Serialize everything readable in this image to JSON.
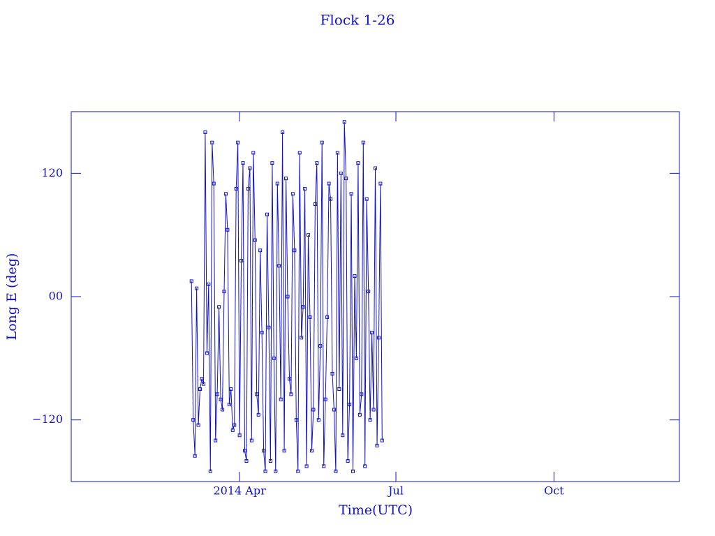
{
  "chart_data": {
    "type": "line",
    "title": "Flock 1-26",
    "x_label": "Time(UTC)",
    "y_label": "Long E (deg)",
    "color": "#1212c8",
    "markers": true,
    "xlim": [
      -8,
      346
    ],
    "xticks": [
      {
        "value": 90,
        "label": "2014 Apr"
      },
      {
        "value": 181,
        "label": "Jul"
      },
      {
        "value": 273,
        "label": "Oct"
      }
    ],
    "ylim": [
      -180,
      180
    ],
    "yticks": [
      {
        "value": -120,
        "label": "−120"
      },
      {
        "value": 0,
        "label": "00"
      },
      120
    ],
    "x": [
      62,
      63,
      64,
      65,
      66,
      67,
      68,
      69,
      70,
      71,
      72,
      73,
      74,
      75,
      76,
      77,
      78,
      79,
      80,
      81,
      82,
      83,
      84,
      85,
      86,
      87,
      88,
      89,
      90,
      91,
      92,
      93,
      94,
      95,
      96,
      97,
      98,
      99,
      100,
      101,
      102,
      103,
      104,
      105,
      106,
      107,
      108,
      109,
      110,
      111,
      112,
      113,
      114,
      115,
      116,
      117,
      118,
      119,
      120,
      121,
      122,
      123,
      124,
      125,
      126,
      127,
      128,
      129,
      130,
      131,
      132,
      133,
      134,
      135,
      136,
      137,
      138,
      139,
      140,
      141,
      142,
      143,
      144,
      145,
      146,
      147,
      148,
      149,
      150,
      151,
      152,
      153,
      154,
      155,
      156,
      157,
      158,
      159,
      160,
      161,
      162,
      163,
      164,
      165,
      166,
      167,
      168,
      169,
      170,
      171,
      172,
      173
    ],
    "values": [
      15,
      -120,
      -155,
      8,
      -125,
      -90,
      -80,
      -85,
      160,
      -55,
      12,
      -170,
      150,
      110,
      -140,
      -95,
      -10,
      -100,
      -110,
      5,
      100,
      65,
      -105,
      -90,
      -130,
      -125,
      105,
      150,
      -135,
      35,
      130,
      -150,
      -160,
      105,
      125,
      -140,
      140,
      55,
      -95,
      -115,
      45,
      -35,
      -150,
      -170,
      80,
      -30,
      -160,
      130,
      -60,
      -170,
      110,
      30,
      -100,
      160,
      -150,
      115,
      0,
      -80,
      -95,
      100,
      45,
      -120,
      -170,
      140,
      -40,
      -10,
      105,
      -165,
      60,
      -20,
      -150,
      -110,
      90,
      130,
      -120,
      -48,
      150,
      -165,
      -100,
      -20,
      110,
      95,
      -75,
      -110,
      -170,
      140,
      -90,
      120,
      -135,
      170,
      115,
      -160,
      -105,
      100,
      -170,
      20,
      -60,
      130,
      -115,
      -95,
      150,
      -165,
      95,
      5,
      -120,
      -35,
      -110,
      125,
      -145,
      -40,
      110,
      -140
    ]
  }
}
